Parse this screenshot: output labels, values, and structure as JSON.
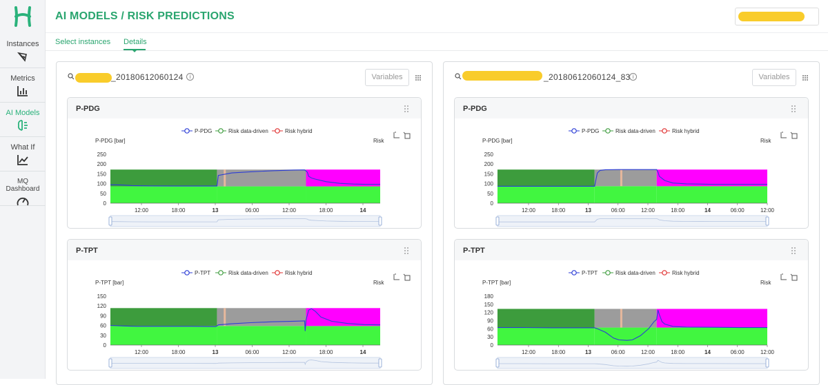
{
  "header": {
    "title": "AI MODELS / RISK PREDICTIONS"
  },
  "nav": {
    "items": [
      {
        "label": "Instances",
        "icon": "pen-tool-icon",
        "active": false
      },
      {
        "label": "Metrics",
        "icon": "bar-chart-icon",
        "active": false
      },
      {
        "label": "AI Models",
        "icon": "brain-icon",
        "active": true
      },
      {
        "label": "What If",
        "icon": "line-chart-icon",
        "active": false
      },
      {
        "label": "MQ Dashboard",
        "icon": "gauge-icon",
        "active": false
      }
    ]
  },
  "tabs": [
    {
      "label": "Select instances"
    },
    {
      "label": "Details",
      "active": true
    }
  ],
  "colors": {
    "accent": "#2aa56f",
    "risk_data_driven": "#3d9c3d",
    "risk_hybrid_low": "#41f640",
    "risk_uncertain": "#9c9c9c",
    "risk_hybrid_high": "#ff00ff",
    "series_line": "#2b3cd6",
    "redaction": "#f9cc2b"
  },
  "panels": [
    {
      "instance_name": "_20180612060124",
      "variables_label": "Variables",
      "charts": [
        {
          "title": "P-PDG",
          "chart_data": {
            "type": "line",
            "legend": [
              "P-PDG",
              "Risk data-driven",
              "Risk hybrid"
            ],
            "ylabel": "P-PDG [bar]",
            "y2label": "Risk",
            "ylim": [
              0,
              250
            ],
            "yticks": [
              "250",
              "200",
              "150",
              "100",
              "50",
              "0"
            ],
            "xticks": [
              "12:00",
              "18:00",
              "13",
              "06:00",
              "12:00",
              "18:00",
              "14"
            ],
            "x": [
              0,
              0.04,
              0.08,
              0.15,
              0.25,
              0.33,
              0.395,
              0.4,
              0.45,
              0.52,
              0.6,
              0.68,
              0.72,
              0.73,
              0.735,
              0.745,
              0.76,
              0.8,
              0.85,
              0.9,
              0.95,
              1.0
            ],
            "y": [
              110,
              108,
              105,
              103,
              102,
              102,
              102,
              165,
              180,
              187,
              193,
              197,
              198,
              185,
              160,
              150,
              143,
              128,
              118,
              114,
              112,
              112
            ],
            "risk_bands": [
              {
                "from": 0.0,
                "to": 0.395,
                "lower": "risk_hybrid_low",
                "upper": "risk_data_driven"
              },
              {
                "from": 0.395,
                "to": 0.725,
                "lower": "risk_hybrid_low",
                "upper": "risk_uncertain"
              },
              {
                "from": 0.725,
                "to": 1.0,
                "lower": "risk_hybrid_low",
                "upper": "risk_hybrid_high"
              }
            ],
            "band_split": 100,
            "band_top": 200,
            "marker_x": 0.42
          }
        },
        {
          "title": "P-TPT",
          "chart_data": {
            "type": "line",
            "legend": [
              "P-TPT",
              "Risk data-driven",
              "Risk hybrid"
            ],
            "ylabel": "P-TPT [bar]",
            "y2label": "Risk",
            "ylim": [
              0,
              150
            ],
            "yticks": [
              "150",
              "120",
              "90",
              "60",
              "30",
              "0"
            ],
            "xticks": [
              "12:00",
              "18:00",
              "13",
              "06:00",
              "12:00",
              "18:00",
              "14"
            ],
            "x": [
              0,
              0.05,
              0.1,
              0.2,
              0.3,
              0.39,
              0.395,
              0.4,
              0.45,
              0.52,
              0.6,
              0.68,
              0.72,
              0.722,
              0.725,
              0.735,
              0.745,
              0.76,
              0.78,
              0.82,
              0.88,
              0.94,
              1.0
            ],
            "y": [
              70,
              68,
              67,
              67,
              67,
              66,
              68,
              72,
              76,
              80,
              83,
              85,
              86,
              50,
              90,
              125,
              130,
              120,
              100,
              85,
              77,
              73,
              72
            ],
            "risk_bands": [
              {
                "from": 0.0,
                "to": 0.395,
                "lower": "risk_hybrid_low",
                "upper": "risk_data_driven"
              },
              {
                "from": 0.395,
                "to": 0.725,
                "lower": "risk_hybrid_low",
                "upper": "risk_uncertain"
              },
              {
                "from": 0.725,
                "to": 1.0,
                "lower": "risk_hybrid_low",
                "upper": "risk_hybrid_high"
              }
            ],
            "band_split": 68,
            "band_top": 132,
            "marker_x": 0.42
          }
        }
      ]
    },
    {
      "instance_name": "_20180612060124_83",
      "variables_label": "Variables",
      "charts": [
        {
          "title": "P-PDG",
          "chart_data": {
            "type": "line",
            "legend": [
              "P-PDG",
              "Risk data-driven",
              "Risk hybrid"
            ],
            "ylabel": "P-PDG [bar]",
            "y2label": "Risk",
            "ylim": [
              0,
              250
            ],
            "yticks": [
              "250",
              "200",
              "150",
              "100",
              "50",
              "0"
            ],
            "xticks": [
              "12:00",
              "18:00",
              "13",
              "06:00",
              "12:00",
              "18:00",
              "14",
              "06:00",
              "12:00"
            ],
            "x": [
              0,
              0.1,
              0.2,
              0.3,
              0.36,
              0.365,
              0.37,
              0.38,
              0.4,
              0.45,
              0.5,
              0.55,
              0.59,
              0.595,
              0.6,
              0.62,
              0.65,
              0.7,
              0.8,
              0.9,
              1.0
            ],
            "y": [
              101,
              101,
              101,
              101,
              101,
              140,
              180,
              195,
              199,
              200,
              200,
              200,
              200,
              185,
              160,
              135,
              120,
              115,
              112,
              112,
              112
            ],
            "risk_bands": [
              {
                "from": 0.0,
                "to": 0.36,
                "lower": "risk_hybrid_low",
                "upper": "risk_data_driven"
              },
              {
                "from": 0.36,
                "to": 0.59,
                "lower": "risk_hybrid_low",
                "upper": "risk_uncertain"
              },
              {
                "from": 0.59,
                "to": 1.0,
                "lower": "risk_hybrid_low",
                "upper": "risk_hybrid_high"
              }
            ],
            "band_split": 101,
            "band_top": 200,
            "marker_x": 0.455
          }
        },
        {
          "title": "P-TPT",
          "chart_data": {
            "type": "line",
            "legend": [
              "P-TPT",
              "Risk data-driven",
              "Risk hybrid"
            ],
            "ylabel": "P-TPT [bar]",
            "y2label": "Risk",
            "ylim": [
              0,
              180
            ],
            "yticks": [
              "180",
              "150",
              "120",
              "90",
              "60",
              "30",
              "0"
            ],
            "xticks": [
              "12:00",
              "18:00",
              "13",
              "06:00",
              "12:00",
              "18:00",
              "14",
              "06:00",
              "12:00"
            ],
            "x": [
              0,
              0.1,
              0.2,
              0.3,
              0.36,
              0.37,
              0.4,
              0.43,
              0.45,
              0.48,
              0.5,
              0.53,
              0.56,
              0.58,
              0.59,
              0.595,
              0.6,
              0.61,
              0.62,
              0.65,
              0.7,
              0.8,
              0.9,
              1.0
            ],
            "y": [
              75,
              75,
              74,
              74,
              74,
              70,
              55,
              30,
              22,
              20,
              22,
              40,
              70,
              100,
              110,
              150,
              130,
              100,
              90,
              80,
              77,
              76,
              75,
              75
            ],
            "risk_bands": [
              {
                "from": 0.0,
                "to": 0.36,
                "lower": "risk_hybrid_low",
                "upper": "risk_data_driven"
              },
              {
                "from": 0.36,
                "to": 0.59,
                "lower": "risk_hybrid_low",
                "upper": "risk_uncertain"
              },
              {
                "from": 0.59,
                "to": 1.0,
                "lower": "risk_hybrid_low",
                "upper": "risk_hybrid_high"
              }
            ],
            "band_split": 75,
            "band_top": 155,
            "marker_x": 0.455
          }
        }
      ]
    }
  ]
}
